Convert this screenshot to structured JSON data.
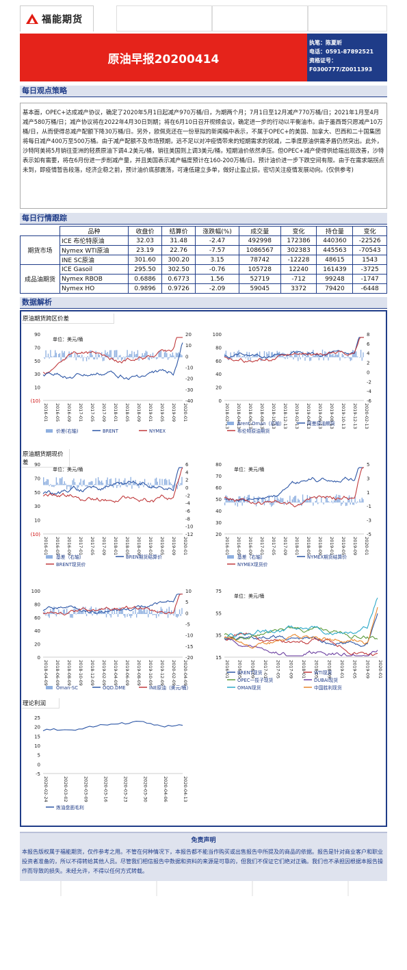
{
  "header": {
    "logo_text": "福能期货",
    "report_title": "原油早报20200414",
    "author_line": "执笔：陈夏昕",
    "phone_line": "电话：0591-87892521",
    "cert_line": "资格证号：",
    "cert_no": "F0300777/Z0011393"
  },
  "sections": {
    "daily_view": "每日观点策略",
    "daily_tracking": "每日行情跟踪",
    "data_analysis": "数据解析"
  },
  "daily_view_text": "基本面，OPEC+达成减产协议，确定了2020年5月1日起减产970万桶/日，为期两个月；7月1日至12月减产770万桶/日；2021年1月至4月减产580万桶/日；减产协议将在2022年4月30日到期；将在6月10日召开视频会议，确定进一步的行动以平衡油市。由于墨西哥只愿减产10万桶/日，从而使得总减产配额下降30万桶/日。另外，欧佩克还在一份草拟的新闻稿中表示，不属于OPEC+的美国、加拿大、巴西和二十国集团将每日减产400万至500万桶。由于减产配额不及市场预期，远不足以对冲疫情带来的短期需求的锐减，二季度原油供需矛盾仍然突出。此外，沙特阿美将5月销往亚洲的轻质原油下调4.2美元/桶，销往美国则上调3美元/桶，短期油价依然承压。但OPEC+减产使得供给端出现改善，沙特表示如有需要，将在6月份进一步削减产量，并且美国表示减产幅度预计在160-200万桶/日。预计油价进一步下跌空间有限。由于在需求端拐点未到，即疫情暂告段落，经济企稳之前，预计油价底部震荡，可逢低建立多单，做好止盈止损，密切关注疫情发展动向。(仅供参考)",
  "table": {
    "headers": [
      "品种",
      "收盘价",
      "结算价",
      "涨跌幅(%)",
      "成交量",
      "变化",
      "持仓量",
      "变化"
    ],
    "group_futures": "期货市场",
    "group_products": "成品油期货",
    "rows": [
      [
        "ICE 布伦特原油",
        "32.03",
        "31.48",
        "-2.47",
        "492998",
        "172386",
        "440360",
        "-22526"
      ],
      [
        "Nymex WTI原油",
        "23.19",
        "22.76",
        "-7.57",
        "1086567",
        "302383",
        "445563",
        "-70543"
      ],
      [
        "INE SC原油",
        "301.60",
        "300.20",
        "3.15",
        "78742",
        "-12228",
        "48615",
        "1543"
      ],
      [
        "ICE Gasoil",
        "295.50",
        "302.50",
        "-0.76",
        "105728",
        "12240",
        "161439",
        "-3725"
      ],
      [
        "Nymex RBOB",
        "0.6886",
        "0.6773",
        "1.56",
        "52719",
        "-712",
        "99248",
        "-1747"
      ],
      [
        "Nymex HO",
        "0.9896",
        "0.9726",
        "-2.09",
        "59045",
        "3372",
        "79420",
        "-6448"
      ]
    ]
  },
  "subtitles": {
    "spread": "原油期货跨区价差",
    "basis": "原油期货期现价差",
    "margin": "理论利润"
  },
  "charts": {
    "unit": "单位：美元/桶",
    "c1": {
      "y_left": [
        "90",
        "70",
        "50",
        "30",
        "10",
        "(10)"
      ],
      "y_right": [
        "20",
        "10",
        "0",
        "-10",
        "-20",
        "-30",
        "-40"
      ],
      "x": [
        "2016-01",
        "2016-05",
        "2016-09",
        "2017-01",
        "2017-05",
        "2017-09",
        "2018-01",
        "2018-05",
        "2018-09",
        "2019-01",
        "2019-05",
        "2019-09",
        "2020-01"
      ],
      "legend": [
        "价差(右轴)",
        "BRENT",
        "NYMEX"
      ]
    },
    "c2": {
      "y_left": [
        "100",
        "80",
        "60",
        "40",
        "20",
        "0"
      ],
      "y_right": [
        "8",
        "6",
        "4",
        "2",
        "0",
        "-2",
        "-4",
        "-6"
      ],
      "x": [
        "2018-02-13",
        "2018-04-13",
        "2018-06-13",
        "2018-08-13",
        "2018-10-13",
        "2018-12-13",
        "2019-02-13",
        "2019-04-13",
        "2019-06-13",
        "2019-08-13",
        "2019-10-13",
        "2019-12-13",
        "2020-02-13"
      ],
      "legend": [
        "Brent-Oman（右轴）",
        "阿曼原油期货",
        "布伦特原油期货"
      ]
    },
    "c3": {
      "y_left": [
        "90",
        "70",
        "50",
        "30",
        "10",
        "(10)"
      ],
      "y_right": [
        "6",
        "4",
        "2",
        "0",
        "-2",
        "-4",
        "-6",
        "-8",
        "-10",
        "-12"
      ],
      "x": [
        "2016-01",
        "2016-05",
        "2016-09",
        "2017-01",
        "2017-05",
        "2017-09",
        "2018-01",
        "2018-05",
        "2018-09",
        "2019-01",
        "2019-05",
        "2019-09",
        "2020-01"
      ],
      "legend": [
        "基差（右轴）",
        "BREN期货结算价",
        "BRENT现货价"
      ]
    },
    "c4": {
      "y_left": [
        "80",
        "70",
        "60",
        "50",
        "40",
        "30",
        "20"
      ],
      "y_right": [
        "5",
        "3",
        "1",
        "-1",
        "-3",
        "-5"
      ],
      "x": [
        "2016-01",
        "2016-05",
        "2016-09",
        "2017-01",
        "2017-05",
        "2017-09",
        "2018-01",
        "2018-05",
        "2018-09",
        "2019-01",
        "2019-05",
        "2019-09",
        "2020-01"
      ],
      "legend": [
        "基差（右轴）",
        "NYMEX期货结算价",
        "NYMEX现货价"
      ]
    },
    "c5": {
      "y_left": [
        "100",
        "80",
        "60",
        "40",
        "20",
        "0"
      ],
      "y_right": [
        "10",
        "5",
        "0",
        "-5",
        "-10",
        "-15",
        "-20"
      ],
      "x": [
        "2018-04-09",
        "2018-06-09",
        "2018-08-09",
        "2018-10-09",
        "2018-12-09",
        "2019-02-09",
        "2019-04-09",
        "2019-06-09",
        "2019-08-09",
        "2019-10-09",
        "2019-12-09",
        "2020-02-09",
        "2020-04-09"
      ],
      "legend": [
        "Oman-SC",
        "OQD.DME",
        "INE原油（美元/桶）"
      ]
    },
    "c6": {
      "y_left": [
        "75",
        "55",
        "35",
        "15"
      ],
      "x": [
        "2016-01",
        "2016-05",
        "2016-09",
        "2017-01",
        "2017-05",
        "2017-09",
        "2018-01",
        "2018-05",
        "2018-09",
        "2019-01",
        "2019-05",
        "2019-09",
        "2020-01"
      ],
      "legend": [
        "BRENT现货",
        "WTI现货",
        "OPEC一揽子现货",
        "DUBAI现货",
        "OMAN现货",
        "中国胜利现货"
      ]
    },
    "c7": {
      "y_left": [
        "25",
        "20",
        "15",
        "10",
        "5",
        "0",
        "-5"
      ],
      "x": [
        "2020-02-24",
        "2020-03-02",
        "2020-03-09",
        "2020-03-16",
        "2020-03-23",
        "2020-03-30",
        "2020-04-06",
        "2020-04-13"
      ],
      "legend": [
        "炼油盘面毛利"
      ]
    }
  },
  "disclaimer": {
    "title": "免责声明",
    "text": "本报告版权属于福能期货，仅作参考之用。不管在何种情况下，本报告都不能当作购买或出售报告中所提及的商品的依据。报告是针对商业客户和职业投资者准备的，所以不得转给其他人员。尽管我们相信报告中数据和资料的来源是可靠的，但我们不保证它们绝对正确。我们也不承担因根据本报告操作而导致的损失。未经允许，不得以任何方式转载。"
  },
  "colors": {
    "red": "#e5231b",
    "navy": "#1f3c88",
    "brent": "#2b55a5",
    "nymex": "#c0393b",
    "bar": "#8fb0e0"
  }
}
